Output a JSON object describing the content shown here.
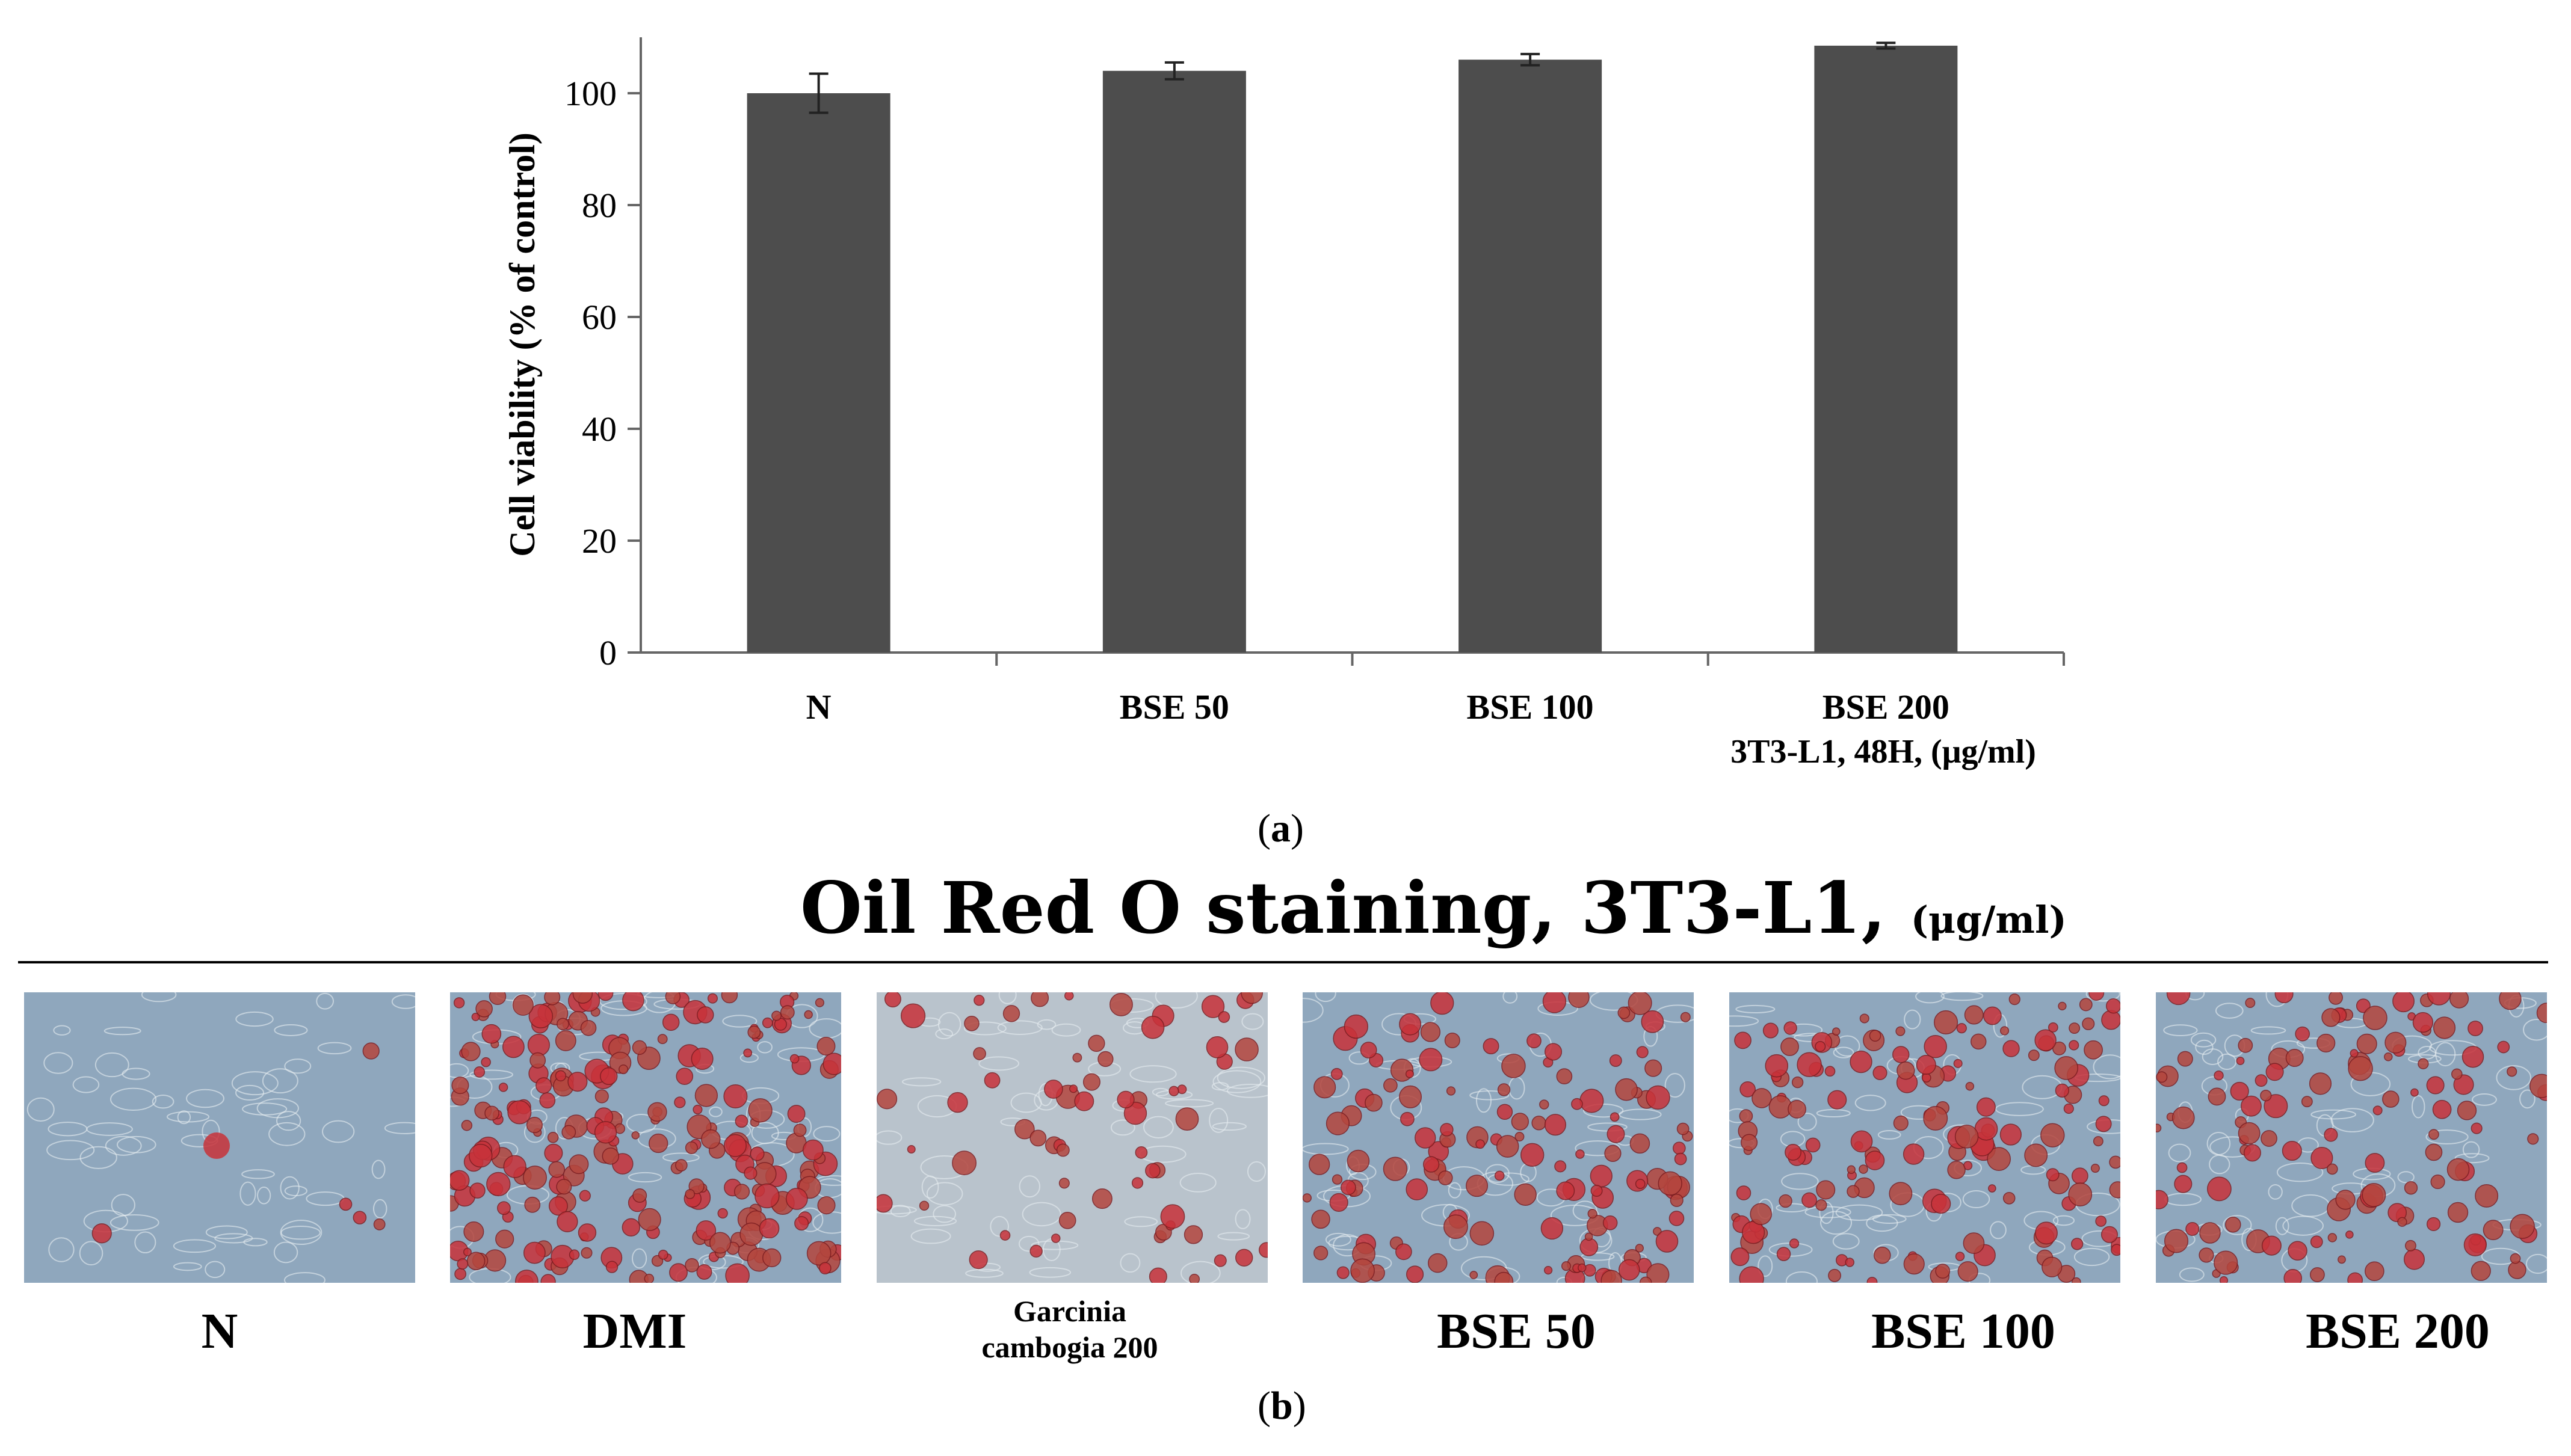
{
  "chart_data": {
    "type": "bar",
    "title": "",
    "ylabel": "Cell viability (% of control)",
    "xlabel": "3T3-L1, 48H, (μg/ml)",
    "categories": [
      "N",
      "BSE 50",
      "BSE 100",
      "BSE 200"
    ],
    "values": [
      100,
      104,
      106,
      108.5
    ],
    "errors": [
      3.5,
      1.5,
      1.0,
      0.5
    ],
    "ylim": [
      0,
      110
    ],
    "yticks": [
      "0",
      "20",
      "40",
      "60",
      "80",
      "100"
    ],
    "bar_color": "#4d4d4d",
    "grid": false
  },
  "captions": {
    "a": "a",
    "b": "b"
  },
  "staining": {
    "title": "Oil Red O staining, 3T3-L1,",
    "units": "(μg/ml)",
    "panels": [
      {
        "label": "N",
        "stain_level": 0.02
      },
      {
        "label": "DMI",
        "stain_level": 0.95
      },
      {
        "label": "Garcinia cambogia 200",
        "stain_level": 0.25
      },
      {
        "label": "BSE 50",
        "stain_level": 0.55
      },
      {
        "label": "BSE 100",
        "stain_level": 0.6
      },
      {
        "label": "BSE 200",
        "stain_level": 0.5
      }
    ]
  },
  "colors": {
    "stain_red": "#c8323a",
    "background_blue": "#8fa7bd",
    "bar": "#4d4d4d"
  }
}
